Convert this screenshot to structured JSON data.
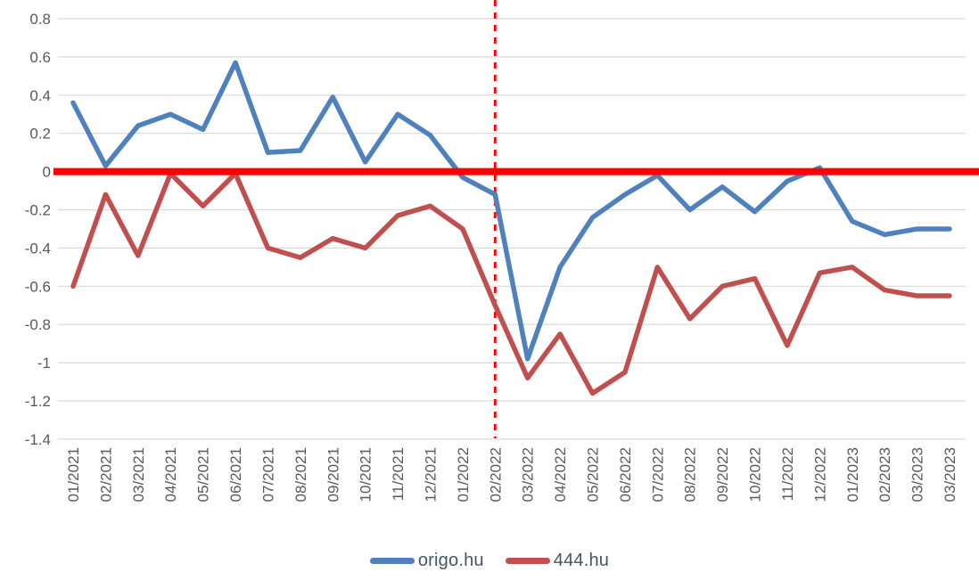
{
  "figure": {
    "background": "#FFFFFF"
  },
  "chart_data": {
    "type": "line",
    "title": "",
    "categories": [
      "01/2021",
      "02/2021",
      "03/2021",
      "04/2021",
      "05/2021",
      "06/2021",
      "07/2021",
      "08/2021",
      "09/2021",
      "10/2021",
      "11/2021",
      "12/2021",
      "01/2022",
      "02/2022",
      "03/2022",
      "04/2022",
      "05/2022",
      "06/2022",
      "07/2022",
      "08/2022",
      "09/2022",
      "10/2022",
      "11/2022",
      "12/2022",
      "01/2023",
      "02/2023",
      "03/2023",
      "03/2023"
    ],
    "series": [
      {
        "name": "origo.hu",
        "color": "#4F81BD",
        "values": [
          0.36,
          0.03,
          0.24,
          0.3,
          0.22,
          0.57,
          0.1,
          0.11,
          0.39,
          0.05,
          0.3,
          0.19,
          -0.03,
          -0.12,
          -0.98,
          -0.5,
          -0.24,
          -0.12,
          -0.02,
          -0.2,
          -0.08,
          -0.21,
          -0.05,
          0.02,
          -0.26,
          -0.33,
          -0.3,
          -0.3
        ]
      },
      {
        "name": "444.hu",
        "color": "#C0504D",
        "values": [
          -0.6,
          -0.12,
          -0.44,
          -0.01,
          -0.18,
          -0.01,
          -0.4,
          -0.45,
          -0.35,
          -0.4,
          -0.23,
          -0.18,
          -0.3,
          -0.7,
          -1.08,
          -0.85,
          -1.16,
          -1.05,
          -0.5,
          -0.77,
          -0.6,
          -0.56,
          -0.91,
          -0.53,
          -0.5,
          -0.62,
          -0.65,
          -0.65
        ]
      }
    ],
    "xlabel": "",
    "ylabel": "",
    "ylim": [
      -1.4,
      0.8
    ],
    "yticks": [
      0.8,
      0.6,
      0.4,
      0.2,
      0,
      -0.2,
      -0.4,
      -0.6,
      -0.8,
      -1,
      -1.2,
      -1.4
    ],
    "ytick_labels": [
      "0.8",
      "0.6",
      "0.4",
      "0.2",
      "0",
      "-0.2",
      "-0.4",
      "-0.6",
      "-0.8",
      "-1",
      "-1.2",
      "-1.4"
    ],
    "grid": true,
    "gridline_color": "#D9D9D9",
    "axis_label_color": "#595959",
    "x_labels_rotation_deg": -90,
    "legend_position": "bottom",
    "annotations": {
      "zero_line": {
        "y": 0,
        "color": "#FF0000",
        "stroke_width": 8
      },
      "dashed_vline": {
        "at_category": "02/2022",
        "category_index": 13,
        "color": "#FF0000",
        "style": "dashed"
      }
    }
  }
}
